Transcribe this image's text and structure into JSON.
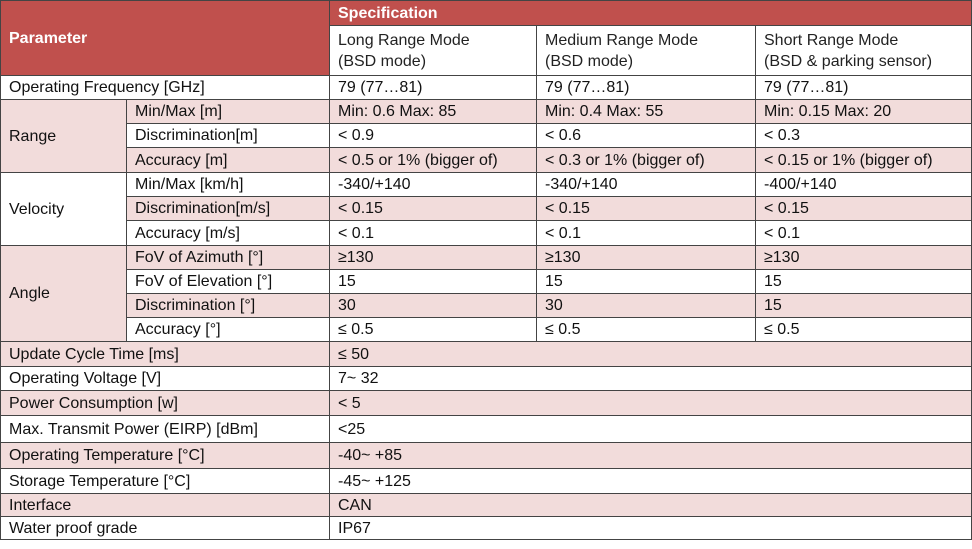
{
  "header": {
    "parameter": "Parameter",
    "specification": "Specification",
    "modes": [
      {
        "line1": "Long Range Mode",
        "line2": "(BSD mode)"
      },
      {
        "line1": "Medium Range Mode",
        "line2": "(BSD mode)"
      },
      {
        "line1": "Short Range Mode",
        "line2": "(BSD & parking sensor)"
      }
    ]
  },
  "operating_frequency": {
    "label": "Operating Frequency [GHz]",
    "values": [
      "79 (77…81)",
      "79 (77…81)",
      "79 (77…81)"
    ]
  },
  "groups": [
    {
      "name": "Range",
      "rows": [
        {
          "label": "Min/Max [m]",
          "values": [
            "Min: 0.6 Max: 85",
            "Min: 0.4 Max: 55",
            "Min: 0.15 Max: 20"
          ]
        },
        {
          "label": "Discrimination[m]",
          "values": [
            "< 0.9",
            "< 0.6",
            "< 0.3"
          ]
        },
        {
          "label": "Accuracy [m]",
          "values": [
            "< 0.5 or 1% (bigger of)",
            "< 0.3 or 1% (bigger of)",
            "< 0.15 or 1% (bigger of)"
          ]
        }
      ]
    },
    {
      "name": "Velocity",
      "rows": [
        {
          "label": "Min/Max [km/h]",
          "values": [
            "-340/+140",
            "-340/+140",
            "-400/+140"
          ]
        },
        {
          "label": "Discrimination[m/s]",
          "values": [
            "< 0.15",
            "< 0.15",
            "< 0.15"
          ]
        },
        {
          "label": "Accuracy [m/s]",
          "values": [
            "< 0.1",
            "< 0.1",
            "< 0.1"
          ]
        }
      ]
    },
    {
      "name": "Angle",
      "rows": [
        {
          "label": "FoV of Azimuth [°]",
          "values": [
            "≥130",
            "≥130",
            "≥130"
          ]
        },
        {
          "label": "FoV of Elevation [°]",
          "values": [
            "15",
            "15",
            "15"
          ]
        },
        {
          "label": "Discrimination [°]",
          "values": [
            "30",
            "30",
            "15"
          ]
        },
        {
          "label": "Accuracy [°]",
          "values": [
            "≤ 0.5",
            "≤ 0.5",
            "≤ 0.5"
          ]
        }
      ]
    }
  ],
  "common_rows": [
    {
      "label": "Update Cycle Time [ms]",
      "value": "≤ 50"
    },
    {
      "label": "Operating Voltage [V]",
      "value": "7~ 32"
    },
    {
      "label": "Power Consumption [w]",
      "value": "< 5"
    },
    {
      "label": "Max. Transmit Power (EIRP) [dBm]",
      "value": "<25"
    },
    {
      "label": "Operating Temperature [°C]",
      "value": "-40~ +85"
    },
    {
      "label": "Storage Temperature [°C]",
      "value": "-45~ +125"
    },
    {
      "label": "Interface",
      "value": "CAN"
    },
    {
      "label": "Water proof grade",
      "value": "IP67"
    }
  ],
  "colors": {
    "header_bg": "#c0504d",
    "header_text": "#ffffff",
    "band_pink": "#f2dcdb",
    "band_white": "#ffffff",
    "border": "#444444"
  }
}
